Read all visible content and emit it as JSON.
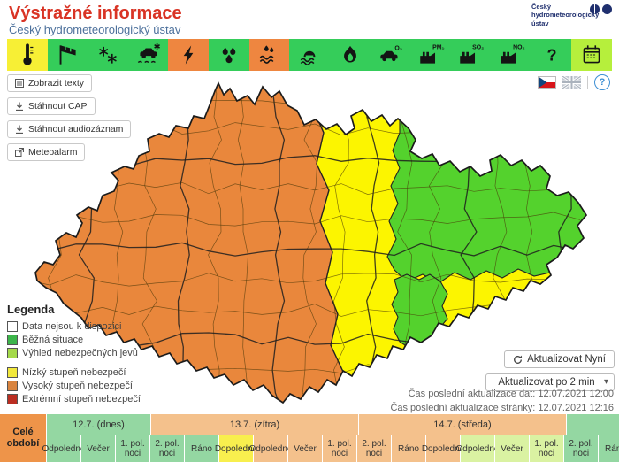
{
  "header": {
    "title": "Výstražné informace",
    "subtitle": "Český hydrometeorologický ústav",
    "logo_text": "Český hydrometeorologický ústav"
  },
  "toolbar": {
    "items": [
      {
        "name": "temperature",
        "bg": "#f7ef35",
        "icon": "thermometer"
      },
      {
        "name": "wind",
        "bg": "#35cd5a",
        "icon": "windsock"
      },
      {
        "name": "snow",
        "bg": "#35cd5a",
        "icon": "snow"
      },
      {
        "name": "icing-roads",
        "bg": "#35cd5a",
        "icon": "car-skid"
      },
      {
        "name": "thunderstorm",
        "bg": "#ee8640",
        "icon": "lightning"
      },
      {
        "name": "rain",
        "bg": "#35cd5a",
        "icon": "rain"
      },
      {
        "name": "heavy-rain",
        "bg": "#ee8640",
        "icon": "rain-flood"
      },
      {
        "name": "flood",
        "bg": "#35cd5a",
        "icon": "flood"
      },
      {
        "name": "fire-danger",
        "bg": "#35cd5a",
        "icon": "fire"
      },
      {
        "name": "smog-o3",
        "bg": "#35cd5a",
        "icon": "car-o3",
        "label": "O₃"
      },
      {
        "name": "air-pm10",
        "bg": "#35cd5a",
        "icon": "factory",
        "label": "PM₁₀"
      },
      {
        "name": "air-so2",
        "bg": "#35cd5a",
        "icon": "factory",
        "label": "SO₂"
      },
      {
        "name": "air-no2",
        "bg": "#35cd5a",
        "icon": "factory",
        "label": "NO₂"
      },
      {
        "name": "other-danger",
        "bg": "#35cd5a",
        "icon": "question"
      },
      {
        "name": "outlook",
        "bg": "#b6ef3c",
        "icon": "calendar"
      }
    ]
  },
  "actions": [
    {
      "name": "show-texts",
      "label": "Zobrazit texty",
      "icon": "list"
    },
    {
      "name": "download-cap",
      "label": "Stáhnout CAP",
      "icon": "download"
    },
    {
      "name": "download-audio",
      "label": "Stáhnout audiozáznam",
      "icon": "download"
    },
    {
      "name": "meteoalarm",
      "label": "Meteoalarm",
      "icon": "external"
    }
  ],
  "flags": {
    "czech": "cz-flag",
    "english": "uk-flag",
    "help": "?"
  },
  "legend": {
    "title": "Legenda",
    "groups": [
      [
        {
          "label": "Data nejsou k dispozici",
          "color": "#ffffff"
        },
        {
          "label": "Běžná situace",
          "color": "#3cb54a"
        },
        {
          "label": "Výhled nebezpečných jevů",
          "color": "#a4d94a"
        }
      ],
      [
        {
          "label": "Nízký stupeň nebezpečí",
          "color": "#f2e83c"
        },
        {
          "label": "Vysoký stupeň nebezpečí",
          "color": "#d9843f"
        },
        {
          "label": "Extrémní stupeň nebezpečí",
          "color": "#bb2e22"
        }
      ]
    ]
  },
  "refresh": {
    "now_label": "Aktualizovat Nyní",
    "interval_value": "Aktualizovat po 2 min",
    "last_data": "Čas poslední aktualizace dat: 12.07.2021 12:00",
    "last_page": "Čas poslední aktualizace stránky: 12.07.2021 12:16"
  },
  "timeline": {
    "period_label_1": "Celé",
    "period_label_2": "období",
    "period_color": "#ee9449",
    "days": [
      {
        "label": "12.7. (dnes)",
        "span": 3,
        "color": "#94d7a2"
      },
      {
        "label": "13.7. (zítra)",
        "span": 6,
        "color": "#f4c18c"
      },
      {
        "label": "14.7. (středa)",
        "span": 6,
        "color": "#f4c18c"
      },
      {
        "label": "",
        "span": 2,
        "color": "#94d7a2"
      }
    ],
    "slots": [
      {
        "label": "Odpoledne",
        "color": "#94d7a2"
      },
      {
        "label": "Večer",
        "color": "#94d7a2"
      },
      {
        "label": "1. pol. noci",
        "color": "#94d7a2"
      },
      {
        "label": "2. pol. noci",
        "color": "#94d7a2"
      },
      {
        "label": "Ráno",
        "color": "#94d7a2"
      },
      {
        "label": "Dopoledne",
        "color": "#f8ef4e"
      },
      {
        "label": "Odpoledne",
        "color": "#f4c18c"
      },
      {
        "label": "Večer",
        "color": "#f4c18c"
      },
      {
        "label": "1. pol. noci",
        "color": "#f4c18c"
      },
      {
        "label": "2. pol. noci",
        "color": "#f4c18c"
      },
      {
        "label": "Ráno",
        "color": "#f4c18c"
      },
      {
        "label": "Dopoledne",
        "color": "#f4c18c"
      },
      {
        "label": "Odpoledne",
        "color": "#daf2a2"
      },
      {
        "label": "Večer",
        "color": "#daf2a2"
      },
      {
        "label": "1. pol. noci",
        "color": "#daf2a2"
      },
      {
        "label": "2. pol. noci",
        "color": "#94d7a2"
      },
      {
        "label": "Ráno",
        "color": "#94d7a2"
      }
    ]
  },
  "map": {
    "colors": {
      "orange": "#e9873c",
      "yellow": "#fcf500",
      "green": "#54d22d",
      "border": "#4a3808",
      "region_border": "#1f1f1f",
      "outline": "#1b1b1b"
    }
  }
}
